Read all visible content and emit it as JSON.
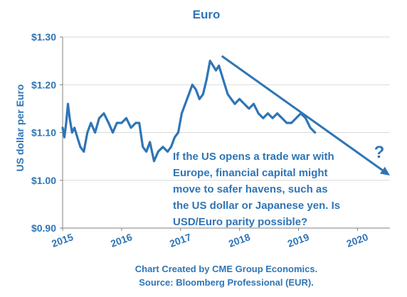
{
  "chart_data": {
    "type": "line",
    "title": "Euro",
    "ylabel": "US dollar per Euro",
    "xlabel": "",
    "xlim": [
      2015,
      2020.55
    ],
    "ylim": [
      0.9,
      1.3
    ],
    "y_ticks": [
      {
        "value": 0.9,
        "label": "$0.90"
      },
      {
        "value": 1.0,
        "label": "$1.00"
      },
      {
        "value": 1.1,
        "label": "$1.10"
      },
      {
        "value": 1.2,
        "label": "$1.20"
      },
      {
        "value": 1.3,
        "label": "$1.30"
      }
    ],
    "x_ticks": [
      {
        "value": 2015,
        "label": "2015"
      },
      {
        "value": 2016,
        "label": "2016"
      },
      {
        "value": 2017,
        "label": "2017"
      },
      {
        "value": 2018,
        "label": "2018"
      },
      {
        "value": 2019,
        "label": "2019"
      },
      {
        "value": 2020,
        "label": "2020"
      }
    ],
    "grid": "horizontal",
    "line_color": "#2E75B6",
    "text_color": "#2E75B6",
    "grid_color": "#D9D9D9",
    "series": [
      {
        "x": [
          2015.0,
          2015.03,
          2015.06,
          2015.09,
          2015.12,
          2015.16,
          2015.2,
          2015.25,
          2015.3,
          2015.36,
          2015.42,
          2015.48,
          2015.55,
          2015.62,
          2015.7,
          2015.78,
          2015.85,
          2015.92,
          2016.0,
          2016.08,
          2016.16,
          2016.24,
          2016.3,
          2016.36,
          2016.42,
          2016.48,
          2016.55,
          2016.62,
          2016.7,
          2016.78,
          2016.84,
          2016.9,
          2016.96,
          2017.02,
          2017.08,
          2017.14,
          2017.2,
          2017.26,
          2017.32,
          2017.38,
          2017.44,
          2017.5,
          2017.55,
          2017.6,
          2017.65,
          2017.7,
          2017.75,
          2017.8,
          2017.86,
          2017.92,
          2018.0,
          2018.08,
          2018.16,
          2018.24,
          2018.32,
          2018.4,
          2018.48,
          2018.56,
          2018.64,
          2018.72,
          2018.8,
          2018.88,
          2018.96,
          2019.04,
          2019.12,
          2019.2,
          2019.28
        ],
        "y": [
          1.11,
          1.09,
          1.12,
          1.16,
          1.13,
          1.1,
          1.11,
          1.09,
          1.07,
          1.06,
          1.1,
          1.12,
          1.1,
          1.13,
          1.14,
          1.12,
          1.1,
          1.12,
          1.12,
          1.13,
          1.11,
          1.12,
          1.12,
          1.07,
          1.06,
          1.08,
          1.04,
          1.06,
          1.07,
          1.06,
          1.07,
          1.09,
          1.1,
          1.14,
          1.16,
          1.18,
          1.2,
          1.19,
          1.17,
          1.18,
          1.21,
          1.25,
          1.24,
          1.23,
          1.24,
          1.22,
          1.2,
          1.18,
          1.17,
          1.16,
          1.17,
          1.16,
          1.15,
          1.16,
          1.14,
          1.13,
          1.14,
          1.13,
          1.14,
          1.13,
          1.12,
          1.12,
          1.13,
          1.14,
          1.13,
          1.11,
          1.1
        ]
      }
    ],
    "trend_arrow": {
      "from": [
        2017.7,
        1.26
      ],
      "to": [
        2020.55,
        1.01
      ],
      "color": "#2E75B6"
    },
    "annotation": {
      "question_mark": "?",
      "lines": [
        "If the US opens a trade war with",
        "Europe, financial capital might",
        "move to safer havens, such as",
        "the US dollar or Japanese yen.  Is",
        "USD/Euro parity possible?"
      ]
    },
    "credits": [
      "Chart Created by CME Group Economics.",
      "Source:  Bloomberg Professional (EUR)."
    ]
  }
}
